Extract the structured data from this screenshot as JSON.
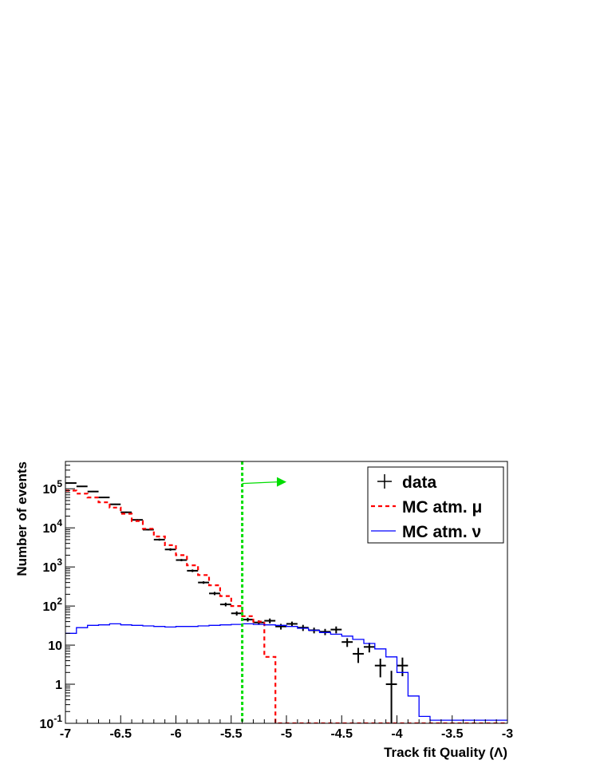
{
  "chart_data": {
    "type": "line",
    "xlabel": "Track fit Quality (Λ)",
    "ylabel": "Number of events",
    "xlim": [
      -7,
      -3
    ],
    "ylim": [
      0.1,
      500000
    ],
    "y_scale": "log",
    "x_ticks": [
      {
        "value": -7,
        "label": "-7"
      },
      {
        "value": -6.5,
        "label": "-6.5"
      },
      {
        "value": -6,
        "label": "-6"
      },
      {
        "value": -5.5,
        "label": "-5.5"
      },
      {
        "value": -5,
        "label": "-5"
      },
      {
        "value": -4.5,
        "label": "-4.5"
      },
      {
        "value": -4,
        "label": "-4"
      },
      {
        "value": -3.5,
        "label": "-3.5"
      },
      {
        "value": -3,
        "label": "-3"
      }
    ],
    "y_ticks": [
      {
        "value": 0.1,
        "base": "10",
        "exp": "-1"
      },
      {
        "value": 1,
        "base": "1",
        "exp": ""
      },
      {
        "value": 10,
        "base": "10",
        "exp": ""
      },
      {
        "value": 100,
        "base": "10",
        "exp": "2"
      },
      {
        "value": 1000,
        "base": "10",
        "exp": "3"
      },
      {
        "value": 10000,
        "base": "10",
        "exp": "4"
      },
      {
        "value": 100000,
        "base": "10",
        "exp": "5"
      }
    ],
    "grid": false,
    "legend_position": "top-right",
    "cut": {
      "x": -5.4,
      "color": "#00dd00",
      "arrow_to_x": -5.0,
      "arrow_at_y": 150000
    },
    "series": [
      {
        "name": "data",
        "kind": "points",
        "color": "#000000",
        "x": [
          -6.95,
          -6.85,
          -6.75,
          -6.65,
          -6.55,
          -6.45,
          -6.35,
          -6.25,
          -6.15,
          -6.05,
          -5.95,
          -5.85,
          -5.75,
          -5.65,
          -5.55,
          -5.45,
          -5.35,
          -5.25,
          -5.15,
          -5.05,
          -4.95,
          -4.85,
          -4.75,
          -4.65,
          -4.55,
          -4.45,
          -4.35,
          -4.25,
          -4.15,
          -4.05,
          -3.95
        ],
        "y": [
          140000,
          115000,
          85000,
          60000,
          40000,
          25000,
          16000,
          9000,
          5000,
          2800,
          1500,
          800,
          400,
          210,
          110,
          65,
          45,
          38,
          42,
          30,
          35,
          28,
          24,
          22,
          25,
          12,
          6,
          9,
          3,
          1,
          3
        ],
        "y_low": [
          135000,
          111000,
          82000,
          58000,
          38500,
          24000,
          15300,
          8600,
          4700,
          2600,
          1400,
          740,
          370,
          190,
          98,
          57,
          40,
          33,
          36,
          25,
          30,
          23,
          20,
          18,
          20,
          9,
          3.5,
          6.5,
          1.5,
          0.1,
          1.6
        ],
        "y_high": [
          145000,
          119000,
          88000,
          62000,
          41500,
          26000,
          16700,
          9400,
          5300,
          3000,
          1600,
          860,
          430,
          230,
          122,
          73,
          50,
          43,
          48,
          35,
          40,
          33,
          28,
          26,
          30,
          15,
          8.5,
          11.5,
          4.5,
          2.2,
          4.8
        ]
      },
      {
        "name": "MC atm. μ",
        "kind": "step",
        "color": "#ff0000",
        "dash": "5,4",
        "edges": [
          -7,
          -6.9,
          -6.8,
          -6.7,
          -6.6,
          -6.5,
          -6.4,
          -6.3,
          -6.2,
          -6.1,
          -6.0,
          -5.9,
          -5.8,
          -5.7,
          -5.6,
          -5.5,
          -5.4,
          -5.3,
          -5.2,
          -5.1,
          -5.0,
          -4.9,
          -4.8,
          -4.7,
          -4.6,
          -4.5,
          -4.4,
          -4.3,
          -4.2,
          -4.1,
          -4.0,
          -3.9,
          -3.8,
          -3.7,
          -3.6,
          -3.5,
          -3.4,
          -3.3,
          -3.2,
          -3.1,
          -3.0
        ],
        "values": [
          90000,
          75000,
          60000,
          45000,
          33000,
          23000,
          15000,
          9500,
          6000,
          3600,
          2000,
          1100,
          620,
          340,
          180,
          100,
          55,
          40,
          5,
          0.05,
          0.05,
          0.05,
          0.05,
          0.05,
          0.05,
          0.05,
          0.05,
          0.05,
          0.05,
          0.05,
          0.05,
          0.05,
          0.05,
          0.05,
          0.05,
          0.05,
          0.05,
          0.05,
          0.05,
          0.05
        ]
      },
      {
        "name": "MC atm. ν",
        "kind": "step",
        "color": "#0000ff",
        "edges": [
          -7,
          -6.9,
          -6.8,
          -6.7,
          -6.6,
          -6.5,
          -6.4,
          -6.3,
          -6.2,
          -6.1,
          -6.0,
          -5.9,
          -5.8,
          -5.7,
          -5.6,
          -5.5,
          -5.4,
          -5.3,
          -5.2,
          -5.1,
          -5.0,
          -4.9,
          -4.8,
          -4.7,
          -4.6,
          -4.5,
          -4.4,
          -4.3,
          -4.2,
          -4.1,
          -4.0,
          -3.9,
          -3.8,
          -3.7,
          -3.6,
          -3.5,
          -3.4,
          -3.3,
          -3.2,
          -3.1,
          -3.0
        ],
        "values": [
          20,
          28,
          32,
          33,
          35,
          33,
          32,
          31,
          30,
          29,
          30,
          30,
          31,
          32,
          33,
          34,
          35,
          34,
          33,
          32,
          30,
          27,
          24,
          21,
          19,
          17,
          14,
          11,
          8,
          5,
          2,
          0.5,
          0.15,
          0.12,
          0.12,
          0.12,
          0.12,
          0.12,
          0.12,
          0.12
        ]
      }
    ]
  }
}
